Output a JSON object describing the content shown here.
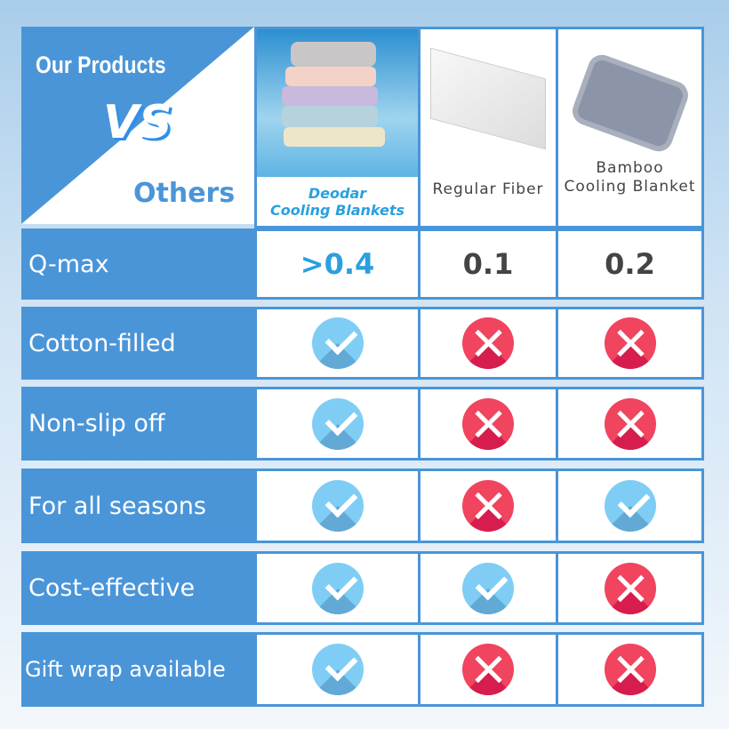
{
  "header": {
    "our_products": "Our Products",
    "vs": "VS",
    "others": "Others"
  },
  "products": [
    {
      "name": "Deodar\nCooling Blankets",
      "line1": "Deodar",
      "line2": "Cooling Blankets",
      "image": "stacked pastel cooling blankets on ice"
    },
    {
      "name": "Regular Fiber",
      "image": "white fiber sheet with ice cubes"
    },
    {
      "name": "Bamboo Cooling Blanket",
      "line1": "Bamboo",
      "line2": "Cooling Blanket",
      "image": "folded grey blanket"
    }
  ],
  "rows": [
    {
      "label": "Q-max",
      "values": [
        ">0.4",
        "0.1",
        "0.2"
      ]
    },
    {
      "label": "Cotton-filled",
      "values": [
        "check",
        "cross",
        "cross"
      ]
    },
    {
      "label": "Non-slip off",
      "values": [
        "check",
        "cross",
        "cross"
      ]
    },
    {
      "label": "For all seasons",
      "values": [
        "check",
        "cross",
        "check"
      ]
    },
    {
      "label": "Cost-effective",
      "values": [
        "check",
        "check",
        "cross"
      ]
    },
    {
      "label": "Gift wrap available",
      "values": [
        "check",
        "cross",
        "cross"
      ]
    }
  ],
  "colors": {
    "label_bg": "#4a95d8",
    "check": "#7fcdf5",
    "cross": "#f0445f",
    "accent_text": "#2aa0e0"
  }
}
